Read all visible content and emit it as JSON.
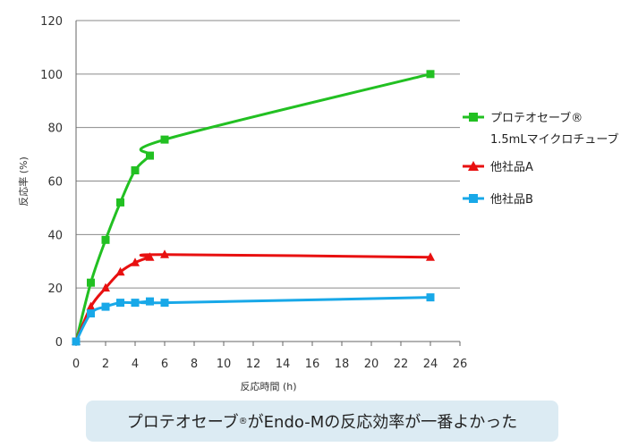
{
  "chart_data": {
    "type": "line",
    "xlabel": "反応時間 (h)",
    "ylabel": "反応率 (%)",
    "xlim": [
      0,
      26
    ],
    "ylim": [
      0,
      120
    ],
    "xticks": [
      0,
      2,
      4,
      6,
      8,
      10,
      12,
      14,
      16,
      18,
      20,
      22,
      24,
      26
    ],
    "yticks": [
      0,
      20,
      40,
      60,
      80,
      100,
      120
    ],
    "grid": "horizontal",
    "legend": "right",
    "series": [
      {
        "name_line1": "プロテオセーブ®",
        "name_line2": "1.5mLマイクロチューブ",
        "color": "#22c022",
        "marker": "square",
        "x": [
          0,
          1,
          2,
          3,
          4,
          5,
          6,
          24
        ],
        "y": [
          0,
          22,
          38,
          52,
          64,
          69.5,
          75.5,
          100
        ]
      },
      {
        "name": "他社品A",
        "color": "#e81010",
        "marker": "triangle",
        "x": [
          0,
          1,
          2,
          3,
          4,
          5,
          6,
          24
        ],
        "y": [
          0,
          13,
          20,
          26,
          29.5,
          31.5,
          32.5,
          31.5
        ]
      },
      {
        "name": "他社品B",
        "color": "#18a8e8",
        "marker": "square",
        "x": [
          0,
          1,
          2,
          3,
          4,
          5,
          6,
          24
        ],
        "y": [
          0,
          10.5,
          13,
          14.5,
          14.5,
          15,
          14.5,
          16.5
        ]
      }
    ]
  },
  "caption": {
    "text_a": "プロテオセーブ",
    "sup": "®",
    "text_b": " がEndo-Mの反応効率が一番よかった"
  }
}
